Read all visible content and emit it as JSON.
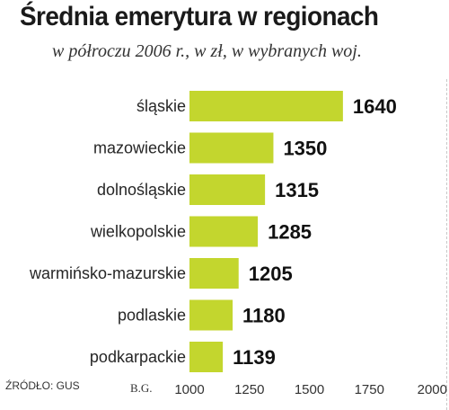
{
  "chart_data": {
    "type": "bar",
    "orientation": "horizontal",
    "title": "Średnia emerytura w regionach",
    "subtitle": "w półroczu 2006 r., w zł, w wybranych woj.",
    "categories": [
      "śląskie",
      "mazowieckie",
      "dolnośląskie",
      "wielkopolskie",
      "warmińsko-mazurskie",
      "podlaskie",
      "podkarpackie"
    ],
    "values": [
      1640,
      1350,
      1315,
      1285,
      1205,
      1180,
      1139
    ],
    "xlim": [
      1000,
      2000
    ],
    "xticks": [
      "1000",
      "1250",
      "1500",
      "1750",
      "2000"
    ],
    "grid": false,
    "legend": "none",
    "bar_color": "#c3d62e"
  },
  "footer": {
    "source": "ŹRÓDŁO: GUS",
    "author": "B.G."
  }
}
